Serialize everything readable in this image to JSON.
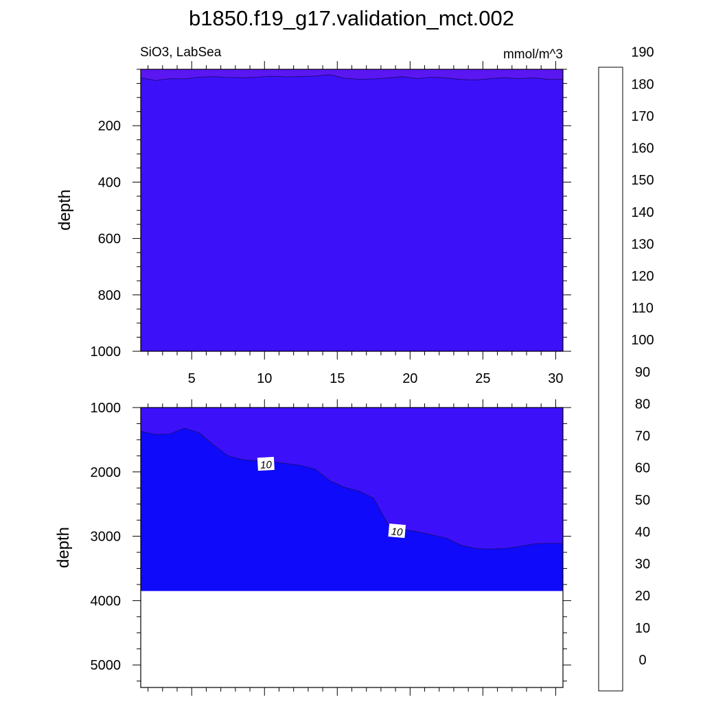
{
  "title": "b1850.f19_g17.validation_mct.002",
  "chart_data": [
    {
      "type": "heatmap",
      "panel": "upper",
      "left_label": "SiO3, LabSea",
      "right_label": "mmol/m^3",
      "ylabel": "depth",
      "xlim": [
        1.5,
        30.5
      ],
      "ylim": [
        1000,
        0
      ],
      "y_axis": "reversed",
      "x_ticks": [
        5,
        10,
        15,
        20,
        25,
        30
      ],
      "y_ticks": [
        200,
        400,
        600,
        800,
        1000
      ],
      "x_tick_labels": [
        "5",
        "10",
        "15",
        "20",
        "25",
        "30"
      ],
      "y_tick_labels": [
        "200",
        "400",
        "600",
        "800",
        "1000"
      ],
      "surface_layer": {
        "x": [
          1.5,
          2.5,
          3.5,
          4.5,
          5.5,
          6.5,
          7.5,
          8.5,
          9.5,
          10.5,
          11.5,
          12.5,
          13.5,
          14.5,
          15.5,
          16.5,
          17.5,
          18.5,
          19.5,
          20.5,
          21.5,
          22.5,
          23.5,
          24.5,
          25.5,
          26.5,
          27.5,
          28.5,
          29.5,
          30.5
        ],
        "boundary_depth": [
          30,
          40,
          33,
          34,
          28,
          26,
          29,
          30,
          28,
          24,
          27,
          26,
          24,
          19,
          32,
          35,
          34,
          31,
          26,
          33,
          28,
          31,
          36,
          38,
          33,
          30,
          33,
          30,
          36,
          36
        ],
        "band_above": "0-5",
        "band_below": "5-10"
      },
      "legend": "none"
    },
    {
      "type": "heatmap",
      "panel": "lower",
      "ylabel": "depth",
      "xlim": [
        1.5,
        30.5
      ],
      "ylim": [
        5350,
        1000
      ],
      "y_axis": "reversed",
      "x_ticks": [
        5,
        10,
        15,
        20,
        25,
        30
      ],
      "y_ticks": [
        1000,
        2000,
        3000,
        4000,
        5000
      ],
      "y_tick_labels": [
        "1000",
        "2000",
        "3000",
        "4000",
        "5000"
      ],
      "ocean_bottom_depth": 3850,
      "contour_10": {
        "x": [
          1.5,
          2.5,
          3.5,
          4.5,
          5.5,
          6.5,
          7.5,
          8.5,
          9.5,
          10.5,
          11.5,
          12.5,
          13.5,
          14.5,
          15.5,
          16.5,
          17.5,
          18.5,
          19.5,
          20.5,
          21.5,
          22.5,
          23.5,
          24.5,
          25.5,
          26.5,
          27.5,
          28.5,
          29.5,
          30.5
        ],
        "depth": [
          1370,
          1420,
          1410,
          1320,
          1390,
          1580,
          1750,
          1810,
          1830,
          1840,
          1870,
          1900,
          1960,
          2140,
          2240,
          2300,
          2410,
          2820,
          2890,
          2930,
          2980,
          3030,
          3140,
          3190,
          3200,
          3190,
          3160,
          3120,
          3110,
          3110
        ],
        "labels": [
          {
            "text": "10",
            "x": 10.1,
            "depth": 1880
          },
          {
            "text": "10",
            "x": 19.1,
            "depth": 2920
          }
        ],
        "band_above": "5-10",
        "band_below": "10-15"
      },
      "legend": "none"
    }
  ],
  "colorbar": {
    "levels": [
      -5,
      0,
      5,
      10,
      15,
      20,
      25,
      30,
      35,
      40,
      45,
      50,
      55,
      60,
      65,
      70,
      75,
      80,
      85,
      90,
      95,
      100,
      105,
      110,
      115,
      120,
      125,
      130,
      135,
      140,
      145,
      150,
      155,
      160,
      165,
      170,
      175,
      180,
      185,
      190,
      195
    ],
    "tick_values": [
      0,
      10,
      20,
      30,
      40,
      50,
      60,
      70,
      80,
      90,
      100,
      110,
      120,
      130,
      140,
      150,
      160,
      170,
      180,
      190
    ],
    "tick_labels": [
      "0",
      "10",
      "20",
      "30",
      "40",
      "50",
      "60",
      "70",
      "80",
      "90",
      "100",
      "110",
      "120",
      "130",
      "140",
      "150",
      "160",
      "170",
      "180",
      "190"
    ],
    "colors": [
      "#7d22e8",
      "#5a17f2",
      "#3d10fa",
      "#0f0afa",
      "#1414ee",
      "#1a22ef",
      "#2342e6",
      "#3565e6",
      "#2a7ded",
      "#2690f5",
      "#0e9dfd",
      "#00b4fa",
      "#19c5f8",
      "#37cbf5",
      "#66c0ea",
      "#84c9ef",
      "#9fd4f0",
      "#b5dcf2",
      "#c7e4f5",
      "#fffbb2",
      "#fff899",
      "#ffe85a",
      "#ffd42e",
      "#ffc414",
      "#ffb20a",
      "#ff9d00",
      "#ff8200",
      "#ff6a00",
      "#ff5208",
      "#ff3a00",
      "#ff2206",
      "#ff0e02",
      "#f90000",
      "#de0000",
      "#ce1414",
      "#d42828",
      "#e04646",
      "#ef7070",
      "#fbaaaa"
    ]
  }
}
